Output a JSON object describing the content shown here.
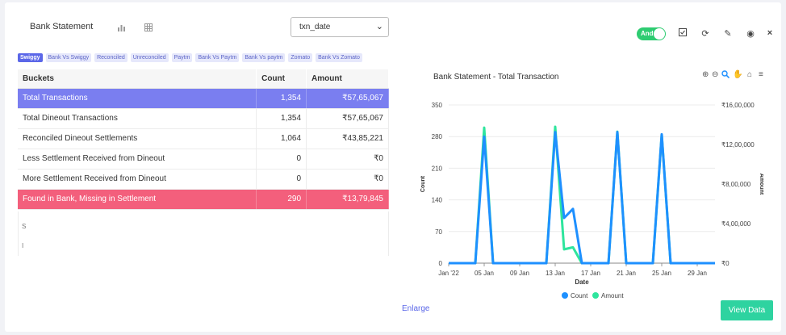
{
  "header": {
    "title": "Bank Statement",
    "select_value": "txn_date",
    "toggle_label": "And"
  },
  "tabs": [
    {
      "label": "Swiggy",
      "active": true
    },
    {
      "label": "Bank Vs Swiggy"
    },
    {
      "label": "Reconciled"
    },
    {
      "label": "Unreconciled"
    },
    {
      "label": "Paytm"
    },
    {
      "label": "Bank Vs Paytm"
    },
    {
      "label": "Bank Vs paytm"
    },
    {
      "label": "Zomato"
    },
    {
      "label": "Bank Vs Zomato"
    }
  ],
  "table": {
    "headers": [
      "Buckets",
      "Count",
      "Amount"
    ],
    "rows": [
      {
        "bucket": "Total Transactions",
        "count": "1,354",
        "amount": "₹57,65,067",
        "style": "blue"
      },
      {
        "bucket": "Total Dineout Transactions",
        "count": "1,354",
        "amount": "₹57,65,067",
        "style": ""
      },
      {
        "bucket": "Reconciled Dineout Settlements",
        "count": "1,064",
        "amount": "₹43,85,221",
        "style": ""
      },
      {
        "bucket": "Less Settlement Received from Dineout",
        "count": "0",
        "amount": "₹0",
        "style": ""
      },
      {
        "bucket": "More Settlement Received from Dineout",
        "count": "0",
        "amount": "₹0",
        "style": ""
      },
      {
        "bucket": "Found in Bank, Missing in Settlement",
        "count": "290",
        "amount": "₹13,79,845",
        "style": "red"
      }
    ],
    "overflow_marks": [
      "S",
      "I"
    ]
  },
  "chart_panel": {
    "title": "Bank Statement  - Total Transaction",
    "enlarge_label": "Enlarge",
    "view_data_label": "View Data"
  },
  "colors": {
    "accent": "#5b67e8",
    "count_series": "#1e90ff",
    "amount_series": "#2ee59d",
    "danger_row": "#f35f7c",
    "toggle_on": "#2ecc71"
  },
  "chart_data": {
    "type": "line",
    "xlabel": "Date",
    "ylabel_left": "Count",
    "ylabel_right": "Amount",
    "x": [
      "2022-01-01",
      "2022-01-02",
      "2022-01-03",
      "2022-01-04",
      "2022-01-05",
      "2022-01-06",
      "2022-01-07",
      "2022-01-08",
      "2022-01-09",
      "2022-01-10",
      "2022-01-11",
      "2022-01-12",
      "2022-01-13",
      "2022-01-14",
      "2022-01-15",
      "2022-01-16",
      "2022-01-17",
      "2022-01-18",
      "2022-01-19",
      "2022-01-20",
      "2022-01-21",
      "2022-01-22",
      "2022-01-23",
      "2022-01-24",
      "2022-01-25",
      "2022-01-26",
      "2022-01-27",
      "2022-01-28",
      "2022-01-29",
      "2022-01-30",
      "2022-01-31"
    ],
    "x_ticks": [
      "Jan '22",
      "05 Jan",
      "09 Jan",
      "13 Jan",
      "17 Jan",
      "21 Jan",
      "25 Jan",
      "29 Jan"
    ],
    "y_left_ticks": [
      "0",
      "70",
      "140",
      "210",
      "280",
      "350"
    ],
    "y_right_ticks": [
      "₹0",
      "₹4,00,000",
      "₹8,00,000",
      "₹12,00,000",
      "₹16,00,000"
    ],
    "ylim_left": [
      0,
      350
    ],
    "ylim_right": [
      0,
      1600000
    ],
    "series": [
      {
        "name": "Count",
        "axis": "left",
        "values": [
          0,
          0,
          0,
          0,
          280,
          0,
          0,
          0,
          0,
          0,
          0,
          0,
          290,
          100,
          120,
          0,
          0,
          0,
          0,
          290,
          0,
          0,
          0,
          0,
          285,
          0,
          0,
          0,
          0,
          0,
          0
        ]
      },
      {
        "name": "Amount",
        "axis": "right",
        "values": [
          0,
          0,
          0,
          0,
          1370000,
          0,
          0,
          0,
          0,
          0,
          0,
          0,
          1380000,
          140000,
          160000,
          0,
          0,
          0,
          0,
          1330000,
          0,
          0,
          0,
          0,
          1300000,
          0,
          0,
          0,
          0,
          0,
          0
        ]
      }
    ],
    "legend": "bottom-center",
    "grid": true
  }
}
